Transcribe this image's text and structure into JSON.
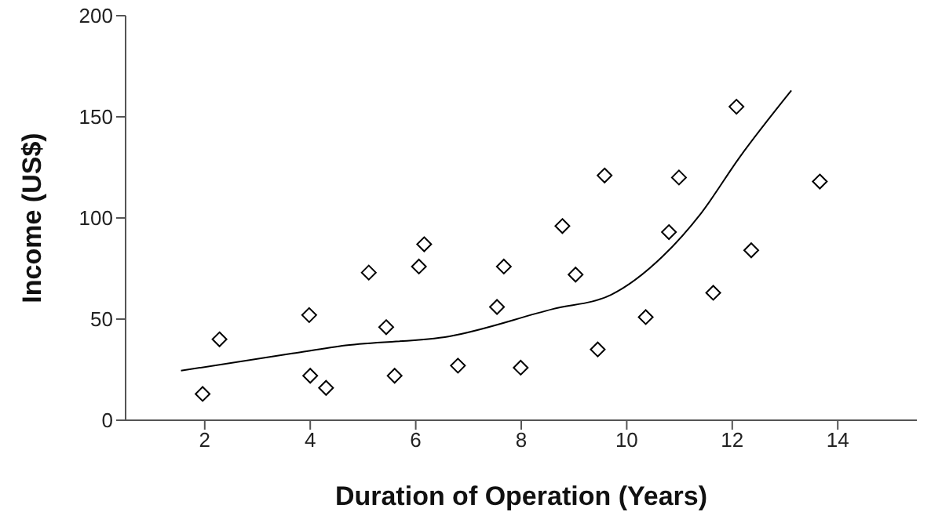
{
  "chart_data": {
    "type": "scatter",
    "xlabel": "Duration of Operation (Years)",
    "ylabel": "Income (US$)",
    "xlim": [
      0.5,
      15.5
    ],
    "xticks": [
      2,
      4,
      6,
      8,
      10,
      12,
      14
    ],
    "ylim": [
      0,
      200
    ],
    "yticks": [
      0,
      50,
      100,
      150,
      200
    ],
    "grid": false,
    "legend": false,
    "series": [
      {
        "color": "#000000",
        "marker": "diamond",
        "x": [
          1.96,
          2.28,
          3.98,
          4.0,
          4.3,
          5.11,
          5.44,
          5.6,
          6.06,
          6.16,
          6.8,
          7.54,
          7.67,
          7.99,
          8.78,
          9.03,
          9.45,
          9.58,
          10.36,
          10.8,
          10.99,
          11.64,
          12.08,
          12.36,
          13.66
        ],
        "values": [
          13,
          40,
          52,
          22,
          16,
          73,
          46,
          22,
          76,
          87,
          27,
          56,
          76,
          26,
          96,
          72,
          35,
          121,
          51,
          93,
          120,
          63,
          155,
          84,
          118
        ]
      },
      {
        "type": "line",
        "color": "#000000",
        "line_style": "solid",
        "marker": "none",
        "x": [
          1.55,
          3.66,
          4.67,
          6.64,
          8.6,
          9.7,
          10.68,
          11.4,
          12.14,
          13.12
        ],
        "values": [
          24.5,
          33,
          37,
          41.5,
          55,
          62,
          81,
          102,
          130,
          163
        ]
      }
    ]
  }
}
